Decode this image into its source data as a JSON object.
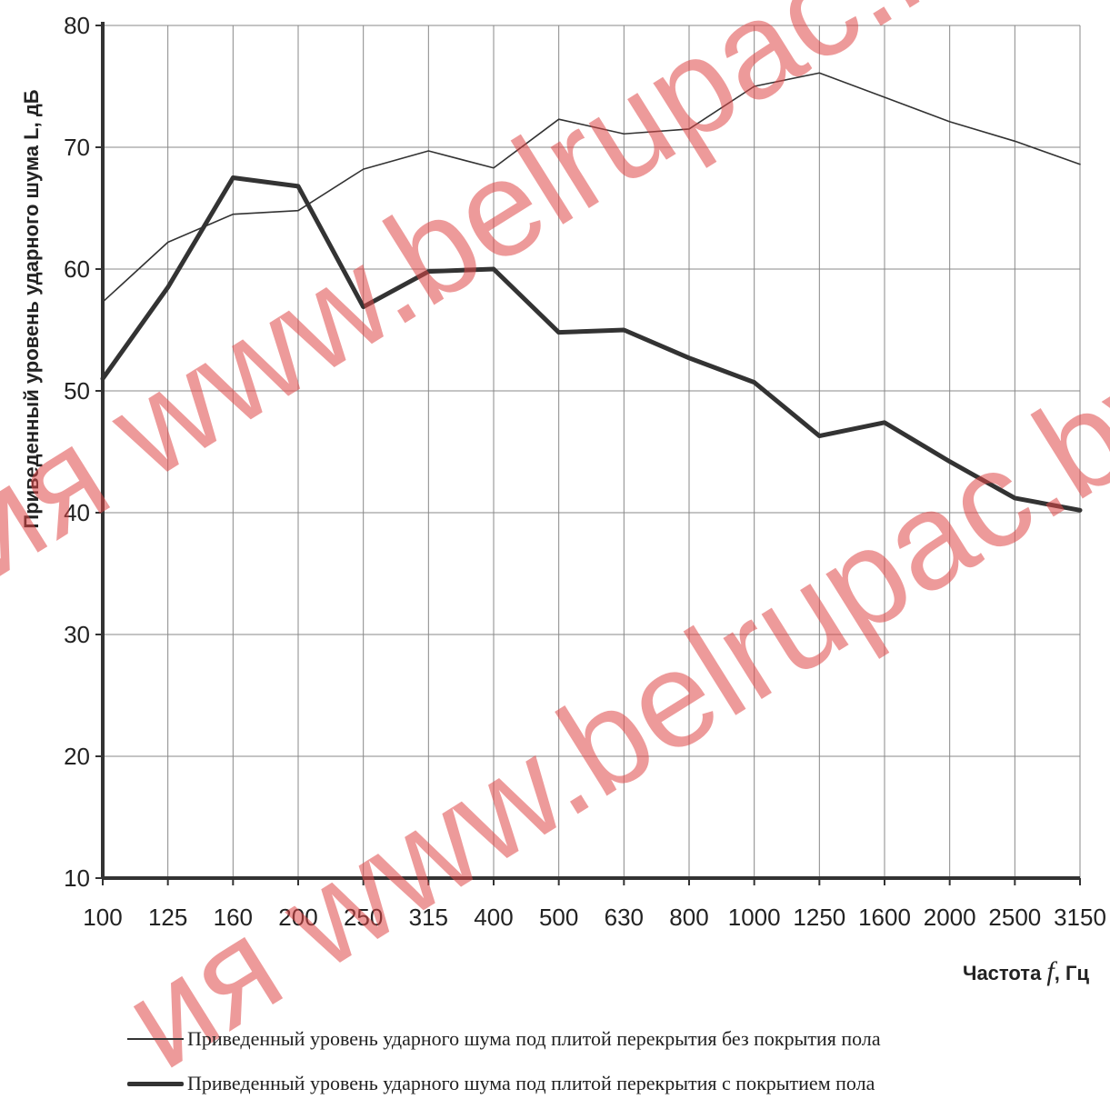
{
  "chart_data": {
    "type": "line",
    "title": "",
    "xlabel": "Частота f, Гц",
    "ylabel": "Приведенный уровень ударного шума L, дБ",
    "categories": [
      "100",
      "125",
      "160",
      "200",
      "250",
      "315",
      "400",
      "500",
      "630",
      "800",
      "1000",
      "1250",
      "1600",
      "2000",
      "2500",
      "3150"
    ],
    "ylim": [
      10,
      80
    ],
    "yticks": [
      "10",
      "20",
      "30",
      "40",
      "50",
      "60",
      "70",
      "80"
    ],
    "grid": true,
    "legend_position": "bottom",
    "series": [
      {
        "name": "Приведенный уровень ударного шума под плитой перекрытия без покрытия пола",
        "values": [
          57.3,
          62.2,
          64.5,
          64.8,
          68.2,
          69.7,
          68.3,
          72.3,
          71.1,
          71.5,
          75.0,
          76.1,
          74.1,
          72.1,
          70.5,
          68.6
        ],
        "style": "thin"
      },
      {
        "name": "Приведенный уровень ударного шума под плитой перекрытия с покрытием пола",
        "values": [
          51.0,
          58.5,
          67.5,
          66.8,
          56.9,
          59.8,
          60.0,
          54.8,
          55.0,
          52.7,
          50.7,
          46.3,
          47.4,
          44.2,
          41.2,
          40.2
        ],
        "style": "thick"
      }
    ],
    "xlabel_parts": {
      "prefix": "Частота ",
      "symbol": "f",
      "suffix": ", Гц"
    },
    "watermark": "ия www.belrupac.by",
    "colors": {
      "line": "#333333",
      "grid": "#888888",
      "watermark": "#e04848"
    }
  }
}
